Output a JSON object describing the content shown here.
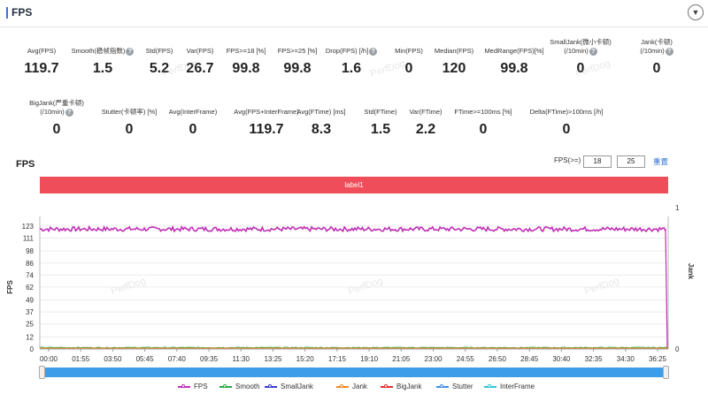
{
  "header": {
    "title": "FPS",
    "collapse_glyph": "▼"
  },
  "metrics_row1": [
    {
      "label": "Avg(FPS)",
      "value": "119.7"
    },
    {
      "label": "Smooth(稳帧指数)",
      "value": "1.5",
      "help": true
    },
    {
      "label": "Std(FPS)",
      "value": "5.2"
    },
    {
      "label": "Var(FPS)",
      "value": "26.7"
    },
    {
      "label": "FPS>=18 [%]",
      "value": "99.8"
    },
    {
      "label": "FPS>=25 [%]",
      "value": "99.8"
    },
    {
      "label": "Drop(FPS) [/h]",
      "value": "1.6",
      "help": true
    },
    {
      "label": "Min(FPS)",
      "value": "0"
    },
    {
      "label": "Median(FPS)",
      "value": "120"
    },
    {
      "label": "MedRange(FPS)[%]",
      "value": "99.8"
    },
    {
      "label": "SmallJank(微小卡顿)",
      "label2": "(/10min)",
      "value": "0",
      "help": true
    },
    {
      "label": "Jank(卡顿)",
      "label2": "(/10min)",
      "value": "0",
      "help": true
    }
  ],
  "metrics_row2": [
    {
      "label": "BigJank(严重卡顿)",
      "label2": "(/10min)",
      "value": "0",
      "help": true
    },
    {
      "label": "Stutter(卡顿率) [%]",
      "value": "0"
    },
    {
      "label": "Avg(InterFrame)",
      "value": "0"
    },
    {
      "label": "Avg(FPS+InterFrame)",
      "value": "119.7"
    },
    {
      "label": "Avg(FTime) [ms]",
      "value": "8.3"
    },
    {
      "label": "Std(FTime)",
      "value": "1.5"
    },
    {
      "label": "Var(FTime)",
      "value": "2.2"
    },
    {
      "label": "FTime>=100ms [%]",
      "value": "0"
    },
    {
      "label": "Delta(FTime)>100ms [/h]",
      "value": "0"
    }
  ],
  "chart_header": {
    "title": "FPS",
    "threshold_label": "FPS(>=)",
    "threshold_1": "18",
    "threshold_2": "25",
    "reset_label": "重置"
  },
  "label_bar": "label1",
  "watermark": "PerfDog",
  "chart_data": {
    "type": "line",
    "y_ticks": [
      "0",
      "12",
      "25",
      "37",
      "49",
      "62",
      "74",
      "86",
      "98",
      "111",
      "123"
    ],
    "ylim": [
      0,
      130
    ],
    "y2_ticks": [
      "0",
      "1"
    ],
    "ylabel": "FPS",
    "y2label": "Jank",
    "x_ticks": [
      "00:00",
      "01:55",
      "03:50",
      "05:45",
      "07:40",
      "09:35",
      "11:30",
      "13:25",
      "15:20",
      "17:15",
      "19:10",
      "21:05",
      "23:00",
      "24:55",
      "26:50",
      "28:45",
      "30:40",
      "32:35",
      "34:30",
      "36:25"
    ],
    "x_range_minutes": [
      0,
      37.5
    ],
    "series": [
      {
        "name": "FPS",
        "color": "#c02fb4",
        "values_summary": {
          "typical": 120,
          "min": 0,
          "max": 123
        }
      },
      {
        "name": "Smooth",
        "color": "#27a844",
        "values_summary": {
          "typical": 1.5
        }
      },
      {
        "name": "SmallJank",
        "color": "#3b3bd6",
        "values_summary": {
          "typical": 0
        }
      },
      {
        "name": "Jank",
        "color": "#f08a24",
        "values_summary": {
          "typical": 0
        }
      },
      {
        "name": "BigJank",
        "color": "#e03131",
        "values_summary": {
          "typical": 0
        }
      },
      {
        "name": "Stutter",
        "color": "#3d8ee8",
        "values_summary": {
          "typical": 0
        }
      },
      {
        "name": "InterFrame",
        "color": "#2bc7d6",
        "values_summary": {
          "typical": 0
        }
      }
    ]
  }
}
